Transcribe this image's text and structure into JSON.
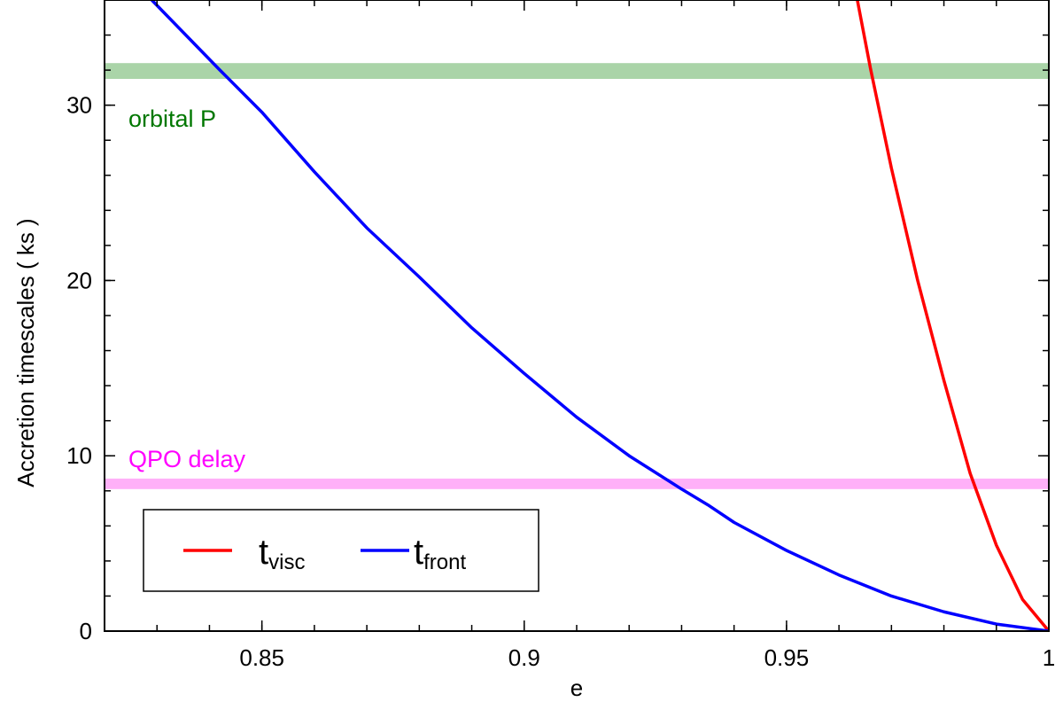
{
  "chart_data": {
    "type": "line",
    "xlabel": "e",
    "ylabel": "Accretion timescales ( ks )",
    "xlim": [
      0.82,
      1.0
    ],
    "ylim": [
      0,
      36
    ],
    "x_ticks": [
      {
        "value": 0.85,
        "label": "0.85"
      },
      {
        "value": 0.9,
        "label": "0.9"
      },
      {
        "value": 0.95,
        "label": "0.95"
      },
      {
        "value": 1.0,
        "label": "1"
      }
    ],
    "y_ticks": [
      {
        "value": 0,
        "label": "0"
      },
      {
        "value": 10,
        "label": "10"
      },
      {
        "value": 20,
        "label": "20"
      },
      {
        "value": 30,
        "label": "30"
      }
    ],
    "x_minor_step": 0.01,
    "y_minor_step": 2,
    "grid": false,
    "series": [
      {
        "name": "t",
        "subscript": "visc",
        "color": "#ff0000",
        "points": [
          [
            0.9635,
            36.0
          ],
          [
            0.966,
            32.1
          ],
          [
            0.97,
            26.4
          ],
          [
            0.975,
            20.0
          ],
          [
            0.98,
            14.3
          ],
          [
            0.985,
            9.0
          ],
          [
            0.99,
            4.9
          ],
          [
            0.995,
            1.8
          ],
          [
            1.0,
            0.0
          ]
        ]
      },
      {
        "name": "t",
        "subscript": "front",
        "color": "#0000ff",
        "points": [
          [
            0.829,
            36.0
          ],
          [
            0.842,
            32.0
          ],
          [
            0.85,
            29.6
          ],
          [
            0.86,
            26.2
          ],
          [
            0.87,
            23.0
          ],
          [
            0.88,
            20.2
          ],
          [
            0.89,
            17.3
          ],
          [
            0.9,
            14.7
          ],
          [
            0.91,
            12.2
          ],
          [
            0.92,
            10.0
          ],
          [
            0.93,
            8.1
          ],
          [
            0.935,
            7.2
          ],
          [
            0.94,
            6.2
          ],
          [
            0.95,
            4.6
          ],
          [
            0.96,
            3.2
          ],
          [
            0.97,
            2.0
          ],
          [
            0.98,
            1.1
          ],
          [
            0.99,
            0.4
          ],
          [
            1.0,
            0.0
          ]
        ]
      }
    ],
    "bands": [
      {
        "label": "orbital P",
        "y_low": 31.5,
        "y_high": 32.4,
        "fill": "#aad4a8",
        "label_color": "#007700"
      },
      {
        "label": "QPO delay",
        "y_low": 8.1,
        "y_high": 8.7,
        "fill": "#ffb0f8",
        "label_color": "#ff00ff"
      }
    ],
    "legend": {
      "placement": "bottom-left",
      "framed": true
    }
  }
}
